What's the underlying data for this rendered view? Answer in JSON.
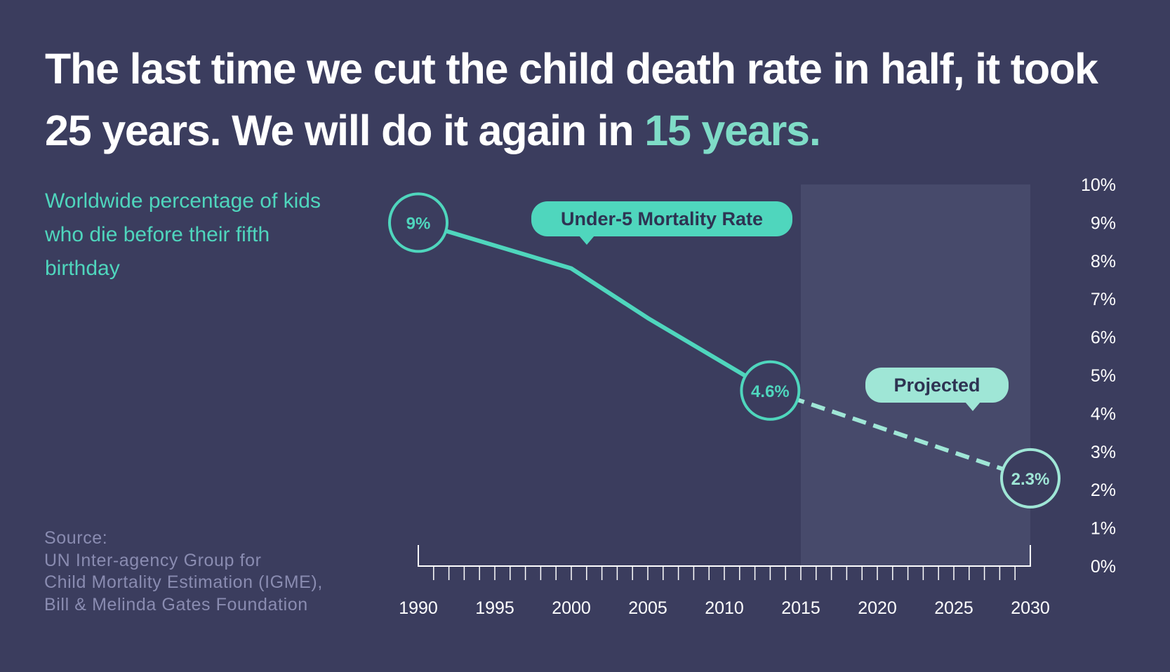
{
  "headline": {
    "part1": "The last time we cut the child death rate in half, it took 25 years. We will do it again in ",
    "highlight": "15 years."
  },
  "subtitle": "Worldwide percentage of kids who die before their fifth birthday",
  "source": {
    "label": "Source:",
    "lines": [
      "UN Inter-agency Group for",
      "Child Mortality Estimation (IGME),",
      "Bill & Melinda Gates Foundation"
    ]
  },
  "colors": {
    "background": "#3b3d5e",
    "line": "#4fd6bd",
    "projected": "#9fe6d6",
    "projected_region": "#474a6b",
    "axis": "#ffffff",
    "source_text": "#8a8cb1"
  },
  "chart_data": {
    "type": "line",
    "title": "",
    "xlabel": "",
    "ylabel": "",
    "xlim": [
      1990,
      2030
    ],
    "ylim": [
      0,
      10
    ],
    "x_ticks": [
      1990,
      1995,
      2000,
      2005,
      2010,
      2015,
      2020,
      2025,
      2030
    ],
    "x_tick_labels": [
      "1990",
      "1995",
      "2000",
      "2005",
      "2010",
      "2015",
      "2020",
      "2025",
      "2030"
    ],
    "y_ticks": [
      0,
      1,
      2,
      3,
      4,
      5,
      6,
      7,
      8,
      9,
      10
    ],
    "y_tick_labels": [
      "0%",
      "1%",
      "2%",
      "3%",
      "4%",
      "5%",
      "6%",
      "7%",
      "8%",
      "9%",
      "10%"
    ],
    "y_axis_side": "right",
    "grid": false,
    "projected_region": [
      2015,
      2030
    ],
    "series": [
      {
        "name": "Under-5 Mortality Rate",
        "style": "solid",
        "x": [
          1990,
          2000,
          2005,
          2013
        ],
        "y": [
          9.0,
          7.8,
          6.5,
          4.6
        ]
      },
      {
        "name": "Projected",
        "style": "dashed",
        "x": [
          2013,
          2030
        ],
        "y": [
          4.6,
          2.3
        ]
      }
    ],
    "highlighted_points": [
      {
        "x": 1990,
        "y": 9.0,
        "label": "9%"
      },
      {
        "x": 2013,
        "y": 4.6,
        "label": "4.6%"
      },
      {
        "x": 2030,
        "y": 2.3,
        "label": "2.3%"
      }
    ],
    "callouts": [
      {
        "text": "Under-5 Mortality Rate",
        "series": 0
      },
      {
        "text": "Projected",
        "series": 1
      }
    ]
  }
}
